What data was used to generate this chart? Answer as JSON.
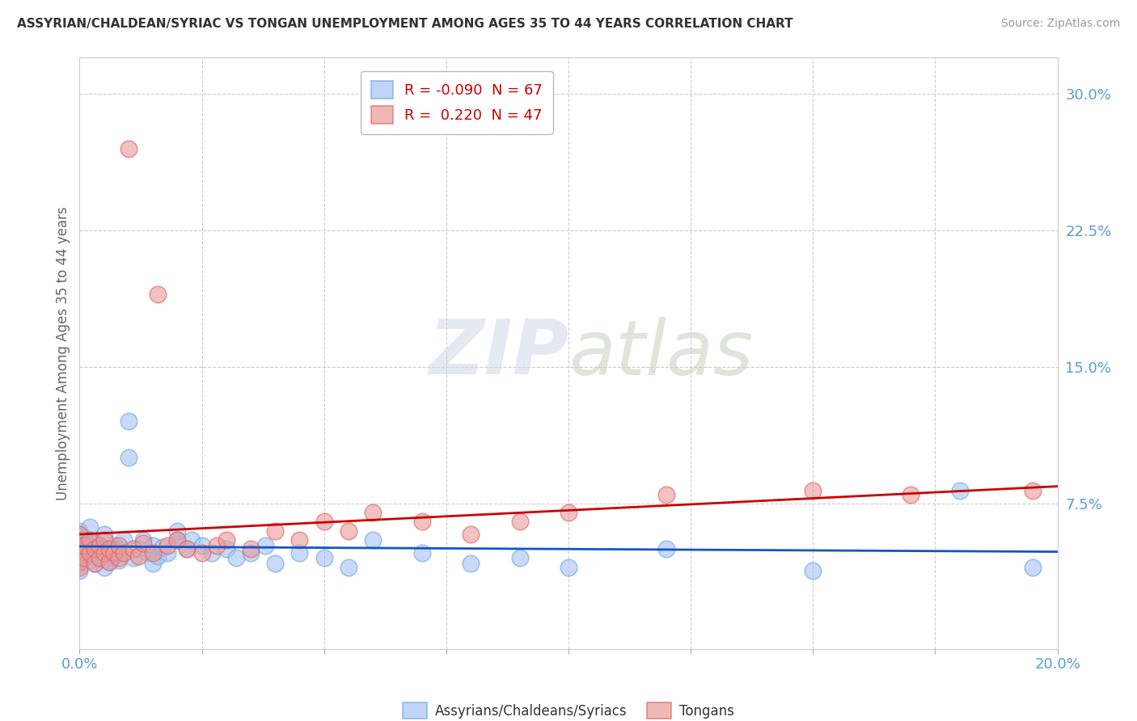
{
  "title": "ASSYRIAN/CHALDEAN/SYRIAC VS TONGAN UNEMPLOYMENT AMONG AGES 35 TO 44 YEARS CORRELATION CHART",
  "source": "Source: ZipAtlas.com",
  "ylabel": "Unemployment Among Ages 35 to 44 years",
  "blue_color": "#a4c2f4",
  "blue_edge_color": "#6fa8dc",
  "pink_color": "#ea9999",
  "pink_edge_color": "#e06666",
  "blue_line_color": "#1155cc",
  "pink_line_color": "#cc0000",
  "legend_R_blue": "-0.090",
  "legend_N_blue": "67",
  "legend_R_pink": "0.220",
  "legend_N_pink": "47",
  "watermark_text": "ZIPatlas",
  "xlim": [
    0.0,
    0.2
  ],
  "ylim": [
    -0.005,
    0.32
  ],
  "xtick_positions": [
    0.0,
    0.025,
    0.05,
    0.075,
    0.1,
    0.125,
    0.15,
    0.175,
    0.2
  ],
  "xtick_labels": [
    "0.0%",
    "",
    "",
    "",
    "",
    "",
    "",
    "",
    "20.0%"
  ],
  "ytick_right_positions": [
    0.0,
    0.075,
    0.15,
    0.225,
    0.3
  ],
  "ytick_right_labels": [
    "",
    "7.5%",
    "15.0%",
    "22.5%",
    "30.0%"
  ],
  "blue_x": [
    0.0,
    0.0,
    0.0,
    0.0,
    0.0,
    0.0,
    0.0,
    0.0,
    0.0,
    0.0,
    0.001,
    0.001,
    0.001,
    0.002,
    0.002,
    0.002,
    0.002,
    0.003,
    0.003,
    0.003,
    0.004,
    0.004,
    0.005,
    0.005,
    0.005,
    0.005,
    0.006,
    0.006,
    0.007,
    0.007,
    0.008,
    0.008,
    0.009,
    0.01,
    0.01,
    0.011,
    0.012,
    0.013,
    0.014,
    0.015,
    0.015,
    0.016,
    0.017,
    0.018,
    0.02,
    0.02,
    0.022,
    0.023,
    0.025,
    0.027,
    0.03,
    0.032,
    0.035,
    0.038,
    0.04,
    0.045,
    0.05,
    0.055,
    0.06,
    0.07,
    0.08,
    0.09,
    0.1,
    0.12,
    0.15,
    0.18,
    0.195
  ],
  "blue_y": [
    0.045,
    0.05,
    0.055,
    0.042,
    0.048,
    0.052,
    0.06,
    0.038,
    0.043,
    0.057,
    0.046,
    0.051,
    0.056,
    0.044,
    0.05,
    0.055,
    0.062,
    0.042,
    0.048,
    0.053,
    0.047,
    0.052,
    0.04,
    0.045,
    0.05,
    0.058,
    0.043,
    0.049,
    0.046,
    0.052,
    0.044,
    0.05,
    0.055,
    0.12,
    0.1,
    0.045,
    0.05,
    0.055,
    0.048,
    0.042,
    0.052,
    0.046,
    0.051,
    0.048,
    0.055,
    0.06,
    0.05,
    0.055,
    0.052,
    0.048,
    0.05,
    0.045,
    0.048,
    0.052,
    0.042,
    0.048,
    0.045,
    0.04,
    0.055,
    0.048,
    0.042,
    0.045,
    0.04,
    0.05,
    0.038,
    0.082,
    0.04
  ],
  "pink_x": [
    0.0,
    0.0,
    0.0,
    0.0,
    0.0,
    0.001,
    0.001,
    0.002,
    0.002,
    0.003,
    0.003,
    0.004,
    0.004,
    0.005,
    0.005,
    0.006,
    0.006,
    0.007,
    0.008,
    0.008,
    0.009,
    0.01,
    0.011,
    0.012,
    0.013,
    0.015,
    0.016,
    0.018,
    0.02,
    0.022,
    0.025,
    0.028,
    0.03,
    0.035,
    0.04,
    0.045,
    0.05,
    0.055,
    0.06,
    0.07,
    0.08,
    0.09,
    0.1,
    0.12,
    0.15,
    0.17,
    0.195
  ],
  "pink_y": [
    0.048,
    0.052,
    0.043,
    0.058,
    0.04,
    0.045,
    0.052,
    0.048,
    0.055,
    0.042,
    0.05,
    0.045,
    0.052,
    0.048,
    0.055,
    0.043,
    0.05,
    0.048,
    0.045,
    0.052,
    0.048,
    0.27,
    0.05,
    0.046,
    0.053,
    0.048,
    0.19,
    0.052,
    0.055,
    0.05,
    0.048,
    0.052,
    0.055,
    0.05,
    0.06,
    0.055,
    0.065,
    0.06,
    0.07,
    0.065,
    0.058,
    0.065,
    0.07,
    0.08,
    0.082,
    0.08,
    0.082
  ]
}
